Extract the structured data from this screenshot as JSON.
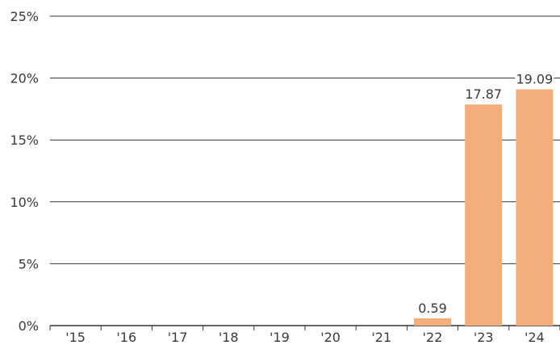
{
  "chart_data": {
    "type": "bar",
    "categories": [
      "'15",
      "'16",
      "'17",
      "'18",
      "'19",
      "'20",
      "'21",
      "'22",
      "'23",
      "'24"
    ],
    "values": [
      0,
      0,
      0,
      0,
      0,
      0,
      0,
      0.59,
      17.87,
      19.09
    ],
    "data_labels": [
      "",
      "",
      "",
      "",
      "",
      "",
      "",
      "0.59",
      "17.87",
      "19.09"
    ],
    "y_ticks": [
      0,
      5,
      10,
      15,
      20,
      25
    ],
    "y_tick_labels": [
      "0%",
      "5%",
      "10%",
      "15%",
      "20%",
      "25%"
    ],
    "ylim": [
      0,
      25
    ],
    "grid": true,
    "legend": "none",
    "bar_color": "#F4AE7C",
    "grid_color": "#333333"
  }
}
